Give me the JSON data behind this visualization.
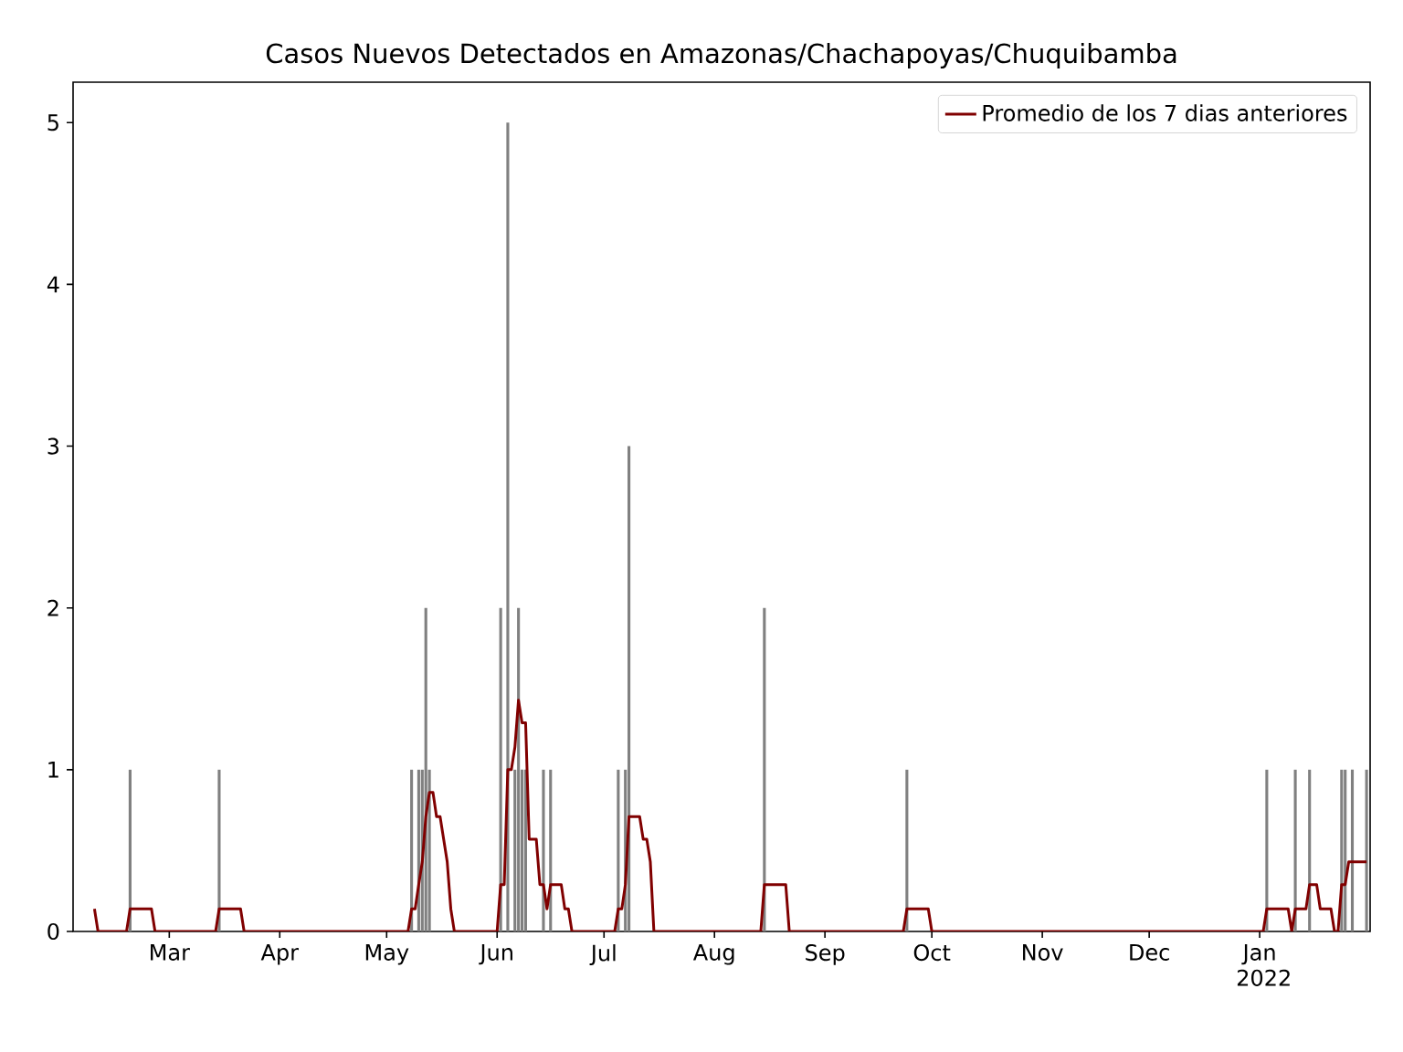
{
  "chart_data": {
    "type": "bar",
    "title": "Casos Nuevos Detectados en Amazonas/Chachapoyas/Chuquibamba",
    "xlim": [
      "2021-02-02",
      "2022-02-01"
    ],
    "ylim": [
      0,
      5.25
    ],
    "yticks": [
      0,
      1,
      2,
      3,
      4,
      5
    ],
    "xticks": [
      {
        "value": "2021-03-01",
        "label": "Mar"
      },
      {
        "value": "2021-04-01",
        "label": "Apr"
      },
      {
        "value": "2021-05-01",
        "label": "May"
      },
      {
        "value": "2021-06-01",
        "label": "Jun"
      },
      {
        "value": "2021-07-01",
        "label": "Jul"
      },
      {
        "value": "2021-08-01",
        "label": "Aug"
      },
      {
        "value": "2021-09-01",
        "label": "Sep"
      },
      {
        "value": "2021-10-01",
        "label": "Oct"
      },
      {
        "value": "2021-11-01",
        "label": "Nov"
      },
      {
        "value": "2021-12-01",
        "label": "Dec"
      },
      {
        "value": "2022-01-01",
        "label": "Jan 2022"
      }
    ],
    "legend": "top right",
    "series": [
      {
        "color": "#808080",
        "x": [
          "2021-02-18",
          "2021-03-15",
          "2021-05-08",
          "2021-05-10",
          "2021-05-11",
          "2021-05-12",
          "2021-05-13",
          "2021-06-02",
          "2021-06-04",
          "2021-06-06",
          "2021-06-07",
          "2021-06-08",
          "2021-06-09",
          "2021-06-14",
          "2021-06-16",
          "2021-07-05",
          "2021-07-07",
          "2021-07-08",
          "2021-08-15",
          "2021-09-24",
          "2022-01-03",
          "2022-01-11",
          "2022-01-15",
          "2022-01-24",
          "2022-01-25",
          "2022-01-27",
          "2022-01-31"
        ],
        "values": [
          1,
          1,
          1,
          1,
          1,
          2,
          1,
          2,
          5,
          1,
          2,
          1,
          1,
          1,
          1,
          1,
          1,
          3,
          2,
          1,
          1,
          1,
          1,
          1,
          1,
          1,
          1
        ]
      },
      {
        "type": "line",
        "name": "Promedio de los 7 dias anteriores",
        "color": "#800000",
        "x": [
          "2021-02-08",
          "2021-02-09",
          "2021-02-17",
          "2021-02-18",
          "2021-02-24",
          "2021-02-25",
          "2021-03-14",
          "2021-03-15",
          "2021-03-21",
          "2021-03-22",
          "2021-05-07",
          "2021-05-08",
          "2021-05-09",
          "2021-05-10",
          "2021-05-11",
          "2021-05-12",
          "2021-05-13",
          "2021-05-14",
          "2021-05-15",
          "2021-05-16",
          "2021-05-17",
          "2021-05-18",
          "2021-05-19",
          "2021-05-20",
          "2021-06-01",
          "2021-06-02",
          "2021-06-03",
          "2021-06-04",
          "2021-06-05",
          "2021-06-06",
          "2021-06-07",
          "2021-06-08",
          "2021-06-09",
          "2021-06-10",
          "2021-06-11",
          "2021-06-12",
          "2021-06-13",
          "2021-06-14",
          "2021-06-15",
          "2021-06-16",
          "2021-06-19",
          "2021-06-20",
          "2021-06-21",
          "2021-06-22",
          "2021-07-04",
          "2021-07-05",
          "2021-07-06",
          "2021-07-07",
          "2021-07-08",
          "2021-07-11",
          "2021-07-12",
          "2021-07-13",
          "2021-07-14",
          "2021-07-15",
          "2021-08-14",
          "2021-08-15",
          "2021-08-21",
          "2021-08-22",
          "2021-09-23",
          "2021-09-24",
          "2021-09-30",
          "2021-10-01",
          "2022-01-02",
          "2022-01-03",
          "2022-01-09",
          "2022-01-10",
          "2022-01-11",
          "2022-01-14",
          "2022-01-15",
          "2022-01-17",
          "2022-01-18",
          "2022-01-21",
          "2022-01-22",
          "2022-01-23",
          "2022-01-24",
          "2022-01-25",
          "2022-01-26",
          "2022-01-31"
        ],
        "values": [
          0.14,
          0,
          0,
          0.14,
          0.14,
          0,
          0,
          0.14,
          0.14,
          0,
          0,
          0.14,
          0.14,
          0.29,
          0.43,
          0.71,
          0.86,
          0.86,
          0.71,
          0.71,
          0.57,
          0.43,
          0.14,
          0,
          0,
          0.29,
          0.29,
          1.0,
          1.0,
          1.14,
          1.43,
          1.29,
          1.29,
          0.57,
          0.57,
          0.57,
          0.29,
          0.29,
          0.14,
          0.29,
          0.29,
          0.14,
          0.14,
          0,
          0,
          0.14,
          0.14,
          0.29,
          0.71,
          0.71,
          0.57,
          0.57,
          0.43,
          0,
          0,
          0.29,
          0.29,
          0,
          0,
          0.14,
          0.14,
          0,
          0,
          0.14,
          0.14,
          0,
          0.14,
          0.14,
          0.29,
          0.29,
          0.14,
          0.14,
          0,
          0,
          0.29,
          0.29,
          0.43,
          0.43
        ]
      }
    ]
  }
}
